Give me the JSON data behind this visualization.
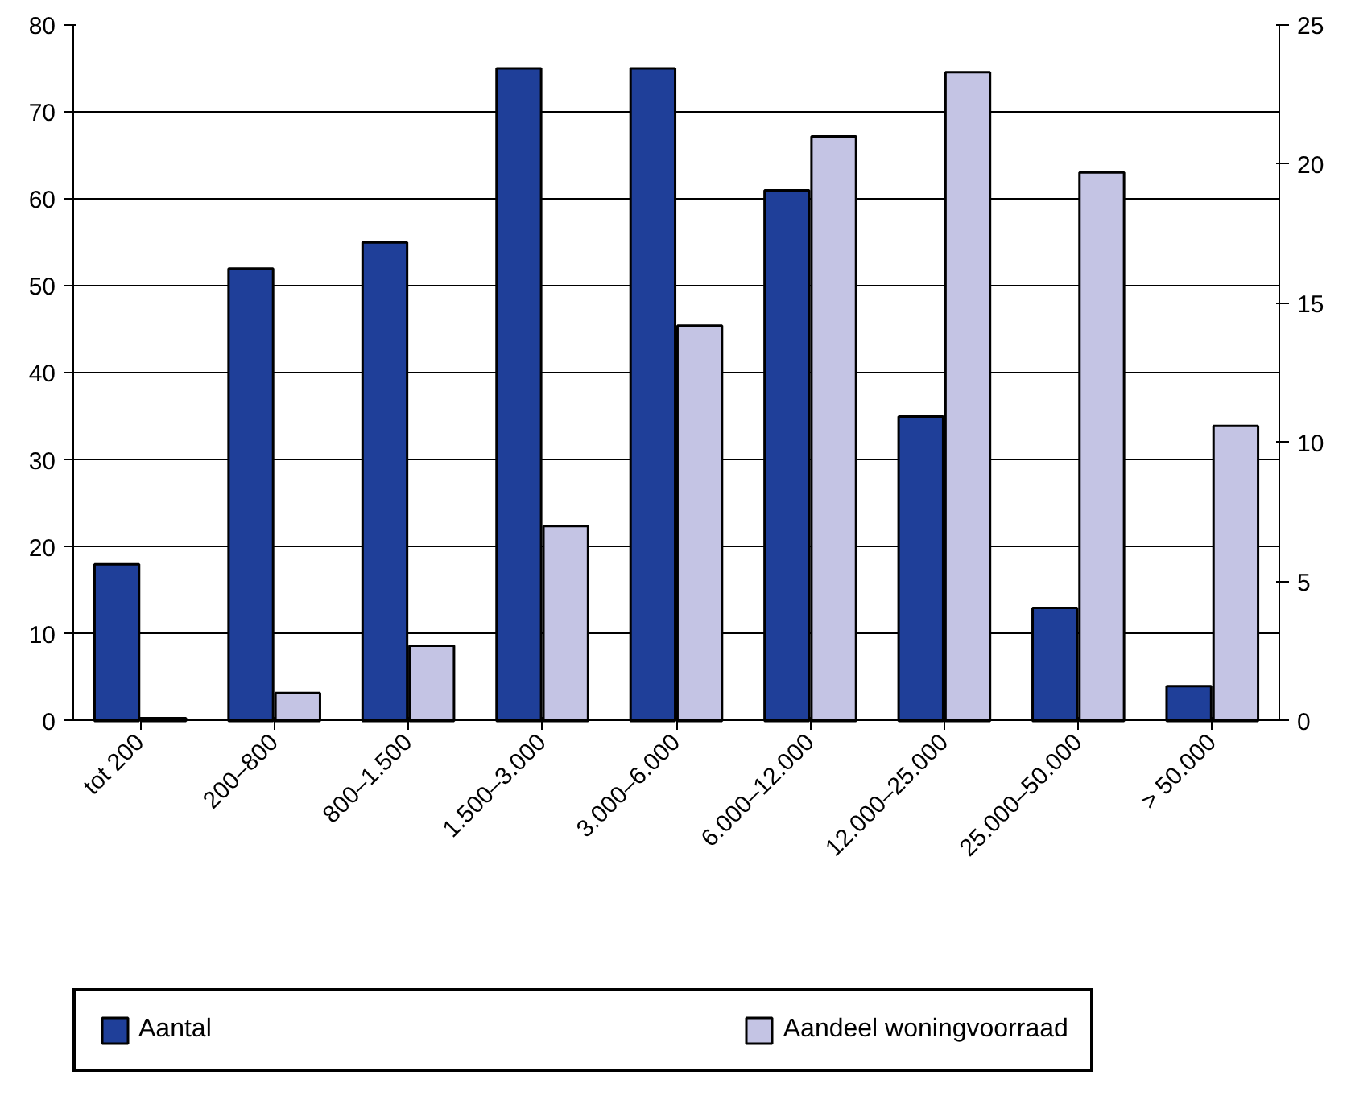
{
  "chart_data": {
    "type": "bar",
    "categories": [
      "tot 200",
      "200–800",
      "800–1.500",
      "1.500–3.000",
      "3.000–6.000",
      "6.000–12.000",
      "12.000–25.000",
      "25.000–50.000",
      "> 50.000"
    ],
    "series": [
      {
        "name": "Aantal",
        "color": "#1f3f99",
        "values": [
          18,
          52,
          55,
          75,
          75,
          61,
          35,
          13,
          4
        ]
      },
      {
        "name": "Aandeel woningvoorraad",
        "color": "#c4c4e4",
        "axis": "y2",
        "values": [
          0.1,
          1.0,
          2.7,
          7.0,
          14.2,
          21.0,
          23.3,
          19.7,
          10.6
        ]
      }
    ],
    "ylim": [
      0,
      80
    ],
    "yticks": [
      0,
      10,
      20,
      30,
      40,
      50,
      60,
      70,
      80
    ],
    "y2lim": [
      0,
      25
    ],
    "y2ticks": [
      0,
      5,
      10,
      15,
      20,
      25
    ],
    "grid": "y",
    "legend": "bottom"
  }
}
